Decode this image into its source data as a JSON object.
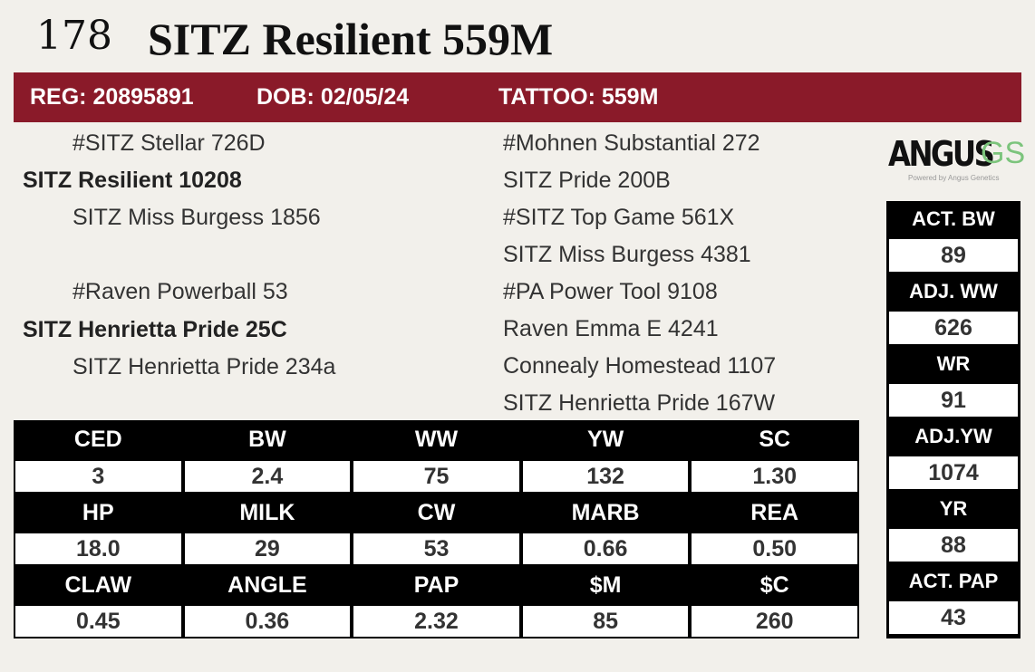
{
  "lot": "178",
  "title": "SITZ Resilient 559M",
  "banner": {
    "reg": "REG: 20895891",
    "dob": "DOB: 02/05/24",
    "tattoo": "TATTOO: 559M",
    "color": "#8a1a29"
  },
  "pedigree": {
    "sire": "SITZ Resilient 10208",
    "sire_sire": "#SITZ Stellar 726D",
    "sire_dam": "SITZ Miss Burgess 1856",
    "dam": "SITZ Henrietta Pride 25C",
    "dam_sire": "#Raven Powerball 53",
    "dam_dam": "SITZ Henrietta Pride 234a",
    "third": [
      "#Mohnen Substantial 272",
      "SITZ Pride 200B",
      "#SITZ Top Game 561X",
      "SITZ Miss Burgess 4381",
      "#PA Power Tool 9108",
      "Raven Emma E 4241",
      "Connealy Homestead 1107",
      "SITZ Henrietta Pride 167W"
    ]
  },
  "logo": {
    "text": "ANGUS",
    "accent": "GS",
    "tagline": "Powered by Angus Genetics"
  },
  "epds": [
    [
      {
        "label": "CED",
        "value": "3"
      },
      {
        "label": "BW",
        "value": "2.4"
      },
      {
        "label": "WW",
        "value": "75"
      },
      {
        "label": "YW",
        "value": "132"
      },
      {
        "label": "SC",
        "value": "1.30"
      }
    ],
    [
      {
        "label": "HP",
        "value": "18.0"
      },
      {
        "label": "MILK",
        "value": "29"
      },
      {
        "label": "CW",
        "value": "53"
      },
      {
        "label": "MARB",
        "value": "0.66"
      },
      {
        "label": "REA",
        "value": "0.50"
      }
    ],
    [
      {
        "label": "CLAW",
        "value": "0.45"
      },
      {
        "label": "ANGLE",
        "value": "0.36"
      },
      {
        "label": "PAP",
        "value": "2.32"
      },
      {
        "label": "$M",
        "value": "85"
      },
      {
        "label": "$C",
        "value": "260"
      }
    ]
  ],
  "performance": [
    {
      "label": "ACT. BW",
      "value": "89"
    },
    {
      "label": "ADJ. WW",
      "value": "626"
    },
    {
      "label": "WR",
      "value": "91"
    },
    {
      "label": "ADJ.YW",
      "value": "1074"
    },
    {
      "label": "YR",
      "value": "88"
    },
    {
      "label": "ACT. PAP",
      "value": "43"
    }
  ]
}
